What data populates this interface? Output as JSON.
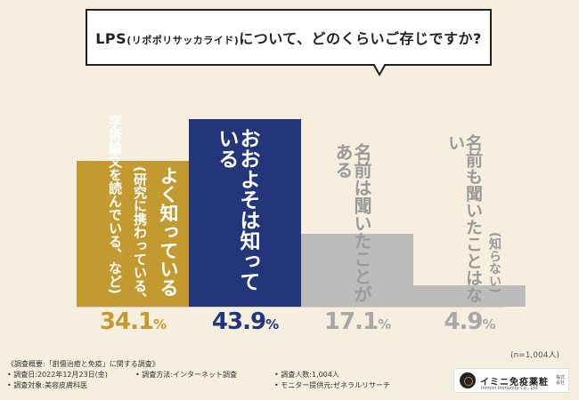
{
  "question": {
    "prefix": "LPS",
    "paren": "(リポポリサッカライド)",
    "suffix": "について、どのくらいご存じですか?"
  },
  "colors": {
    "gold": "#c29a2f",
    "navy": "#23367a",
    "gray": "#bcbcbc",
    "background": "#f6efe0"
  },
  "chart_data": {
    "type": "bar",
    "title": "LPS(リポポリサッカライド)について、どのくらいご存じですか?",
    "categories": [
      "よく知っている(研究に携わっている、学術論文を読んでいる、など)",
      "おおよそは知っている",
      "名前は聞いたことがある",
      "名前も聞いたことはない(知らない)"
    ],
    "values": [
      34.1,
      43.9,
      17.1,
      4.9
    ],
    "unit": "%",
    "ylim": [
      0,
      50
    ]
  },
  "bars": [
    {
      "main": "よく知っている",
      "sub": "(研究に携わっている、",
      "sub2": "学術論文を読んでいる、など)",
      "pct_int": "34.1",
      "pct_unit": "%"
    },
    {
      "main": "おおよそは知っている",
      "pct_int": "43.9",
      "pct_unit": "%"
    },
    {
      "main": "名前は聞いたことがある",
      "pct_int": "17.1",
      "pct_unit": "%"
    },
    {
      "main": "名前も聞いたことはない",
      "sub": "(知らない)",
      "pct_int": "4.9",
      "pct_unit": "%"
    }
  ],
  "sample_size": "(n=1,004人)",
  "footer": {
    "title": "《調査概要:「創傷治癒と免疫」に関する調査》",
    "date": "• 調査日:2022年12月23日(金)",
    "target": "• 調査対象:美容皮膚科医",
    "method": "• 調査方法:インターネット調査",
    "count": "• 調査人数:1,004人",
    "provider": "• モニター提供元:ゼネラルリサーチ"
  },
  "logo": {
    "name": "イミニ免疫薬粧",
    "sub": "Immini Immunity Co., Ltd.",
    "corp": "株式会社"
  }
}
